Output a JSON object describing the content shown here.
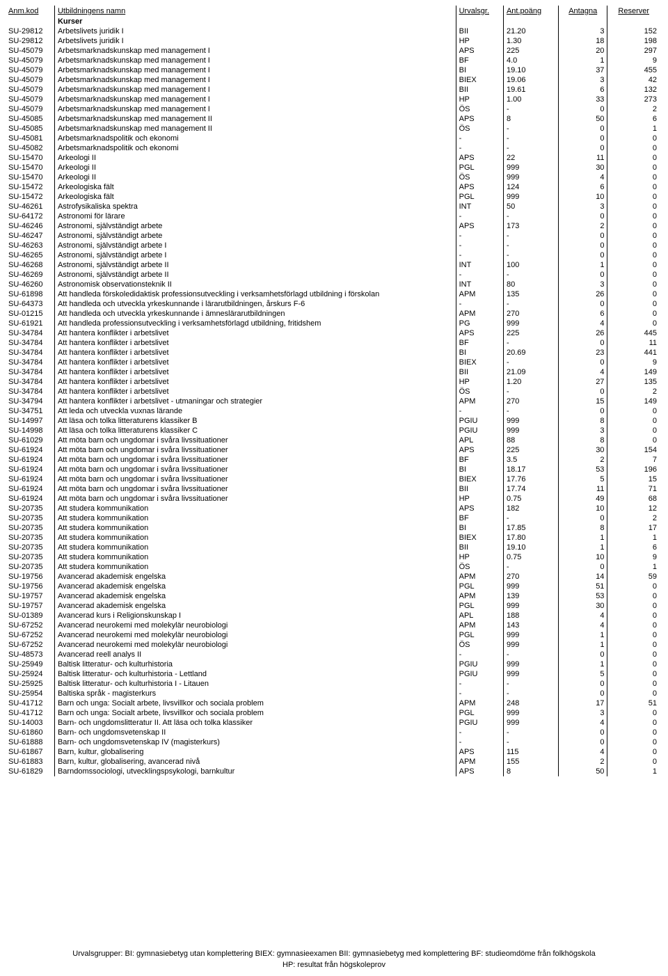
{
  "headers": {
    "code": "Anm.kod",
    "name": "Utbildningens namn",
    "urv": "Urvalsgr.",
    "poang": "Ant.poäng",
    "ant": "Antagna",
    "res": "Reserver"
  },
  "section_label": "Kurser",
  "footer_line1": "Urvalsgrupper:  BI: gymnasiebetyg utan komplettering  BIEX: gymnasieexamen  BII: gymnasiebetyg med komplettering  BF: studieomdöme från folkhögskola",
  "footer_line2": "HP: resultat från högskoleprov",
  "rows": [
    [
      "SU-29812",
      "Arbetslivets juridik I",
      "BII",
      "21.20",
      "3",
      "152"
    ],
    [
      "SU-29812",
      "Arbetslivets juridik I",
      "HP",
      "1.30",
      "18",
      "198"
    ],
    [
      "SU-45079",
      "Arbetsmarknadskunskap med management I",
      "APS",
      "225",
      "20",
      "297"
    ],
    [
      "SU-45079",
      "Arbetsmarknadskunskap med management I",
      "BF",
      "4.0",
      "1",
      "9"
    ],
    [
      "SU-45079",
      "Arbetsmarknadskunskap med management I",
      "BI",
      "19.10",
      "37",
      "455"
    ],
    [
      "SU-45079",
      "Arbetsmarknadskunskap med management I",
      "BIEX",
      "19.06",
      "3",
      "42"
    ],
    [
      "SU-45079",
      "Arbetsmarknadskunskap med management I",
      "BII",
      "19.61",
      "6",
      "132"
    ],
    [
      "SU-45079",
      "Arbetsmarknadskunskap med management I",
      "HP",
      "1.00",
      "33",
      "273"
    ],
    [
      "SU-45079",
      "Arbetsmarknadskunskap med management I",
      "ÖS",
      "-",
      "0",
      "2"
    ],
    [
      "SU-45085",
      "Arbetsmarknadskunskap med management II",
      "APS",
      "8",
      "50",
      "6"
    ],
    [
      "SU-45085",
      "Arbetsmarknadskunskap med management II",
      "ÖS",
      "-",
      "0",
      "1"
    ],
    [
      "SU-45081",
      "Arbetsmarknadspolitik och ekonomi",
      "-",
      "-",
      "0",
      "0"
    ],
    [
      "SU-45082",
      "Arbetsmarknadspolitik och ekonomi",
      "-",
      "-",
      "0",
      "0"
    ],
    [
      "SU-15470",
      "Arkeologi II",
      "APS",
      "22",
      "11",
      "0"
    ],
    [
      "SU-15470",
      "Arkeologi II",
      "PGL",
      "999",
      "30",
      "0"
    ],
    [
      "SU-15470",
      "Arkeologi II",
      "ÖS",
      "999",
      "4",
      "0"
    ],
    [
      "SU-15472",
      "Arkeologiska fält",
      "APS",
      "124",
      "6",
      "0"
    ],
    [
      "SU-15472",
      "Arkeologiska fält",
      "PGL",
      "999",
      "10",
      "0"
    ],
    [
      "SU-46261",
      "Astrofysikaliska spektra",
      "INT",
      "50",
      "3",
      "0"
    ],
    [
      "SU-64172",
      "Astronomi för lärare",
      "-",
      "-",
      "0",
      "0"
    ],
    [
      "SU-46246",
      "Astronomi, självständigt arbete",
      "APS",
      "173",
      "2",
      "0"
    ],
    [
      "SU-46247",
      "Astronomi, självständigt arbete",
      "-",
      "-",
      "0",
      "0"
    ],
    [
      "SU-46263",
      "Astronomi, självständigt arbete I",
      "-",
      "-",
      "0",
      "0"
    ],
    [
      "SU-46265",
      "Astronomi, självständigt arbete I",
      "-",
      "-",
      "0",
      "0"
    ],
    [
      "SU-46268",
      "Astronomi, självständigt arbete II",
      "INT",
      "100",
      "1",
      "0"
    ],
    [
      "SU-46269",
      "Astronomi, självständigt arbete II",
      "-",
      "-",
      "0",
      "0"
    ],
    [
      "SU-46260",
      "Astronomisk observationsteknik II",
      "INT",
      "80",
      "3",
      "0"
    ],
    [
      "SU-61898",
      "Att handleda förskoledidaktisk professionsutveckling i verksamhetsförlagd utbildning i förskolan",
      "APM",
      "135",
      "26",
      "0"
    ],
    [
      "SU-64373",
      "Att handleda och utveckla yrkeskunnande i lärarutbildningen, årskurs F-6",
      "-",
      "-",
      "0",
      "0"
    ],
    [
      "SU-01215",
      "Att handleda och utveckla yrkeskunnande i ämneslärarutbildningen",
      "APM",
      "270",
      "6",
      "0"
    ],
    [
      "SU-61921",
      "Att handleda professionsutveckling i verksamhetsförlagd utbildning, fritidshem",
      "PG",
      "999",
      "4",
      "0"
    ],
    [
      "SU-34784",
      "Att hantera konflikter i arbetslivet",
      "APS",
      "225",
      "26",
      "445"
    ],
    [
      "SU-34784",
      "Att hantera konflikter i arbetslivet",
      "BF",
      "-",
      "0",
      "11"
    ],
    [
      "SU-34784",
      "Att hantera konflikter i arbetslivet",
      "BI",
      "20.69",
      "23",
      "441"
    ],
    [
      "SU-34784",
      "Att hantera konflikter i arbetslivet",
      "BIEX",
      "-",
      "0",
      "9"
    ],
    [
      "SU-34784",
      "Att hantera konflikter i arbetslivet",
      "BII",
      "21.09",
      "4",
      "149"
    ],
    [
      "SU-34784",
      "Att hantera konflikter i arbetslivet",
      "HP",
      "1.20",
      "27",
      "135"
    ],
    [
      "SU-34784",
      "Att hantera konflikter i arbetslivet",
      "ÖS",
      "-",
      "0",
      "2"
    ],
    [
      "SU-34794",
      "Att hantera konflikter i arbetslivet  - utmaningar och strategier",
      "APM",
      "270",
      "15",
      "149"
    ],
    [
      "SU-34751",
      "Att leda och utveckla vuxnas lärande",
      "-",
      "-",
      "0",
      "0"
    ],
    [
      "SU-14997",
      "Att läsa och tolka litteraturens klassiker B",
      "PGIU",
      "999",
      "8",
      "0"
    ],
    [
      "SU-14998",
      "Att läsa och tolka litteraturens klassiker C",
      "PGIU",
      "999",
      "3",
      "0"
    ],
    [
      "SU-61029",
      "Att möta barn och ungdomar i svåra livssituationer",
      "APL",
      "88",
      "8",
      "0"
    ],
    [
      "SU-61924",
      "Att möta barn och ungdomar i svåra livssituationer",
      "APS",
      "225",
      "30",
      "154"
    ],
    [
      "SU-61924",
      "Att möta barn och ungdomar i svåra livssituationer",
      "BF",
      "3.5",
      "2",
      "7"
    ],
    [
      "SU-61924",
      "Att möta barn och ungdomar i svåra livssituationer",
      "BI",
      "18.17",
      "53",
      "196"
    ],
    [
      "SU-61924",
      "Att möta barn och ungdomar i svåra livssituationer",
      "BIEX",
      "17.76",
      "5",
      "15"
    ],
    [
      "SU-61924",
      "Att möta barn och ungdomar i svåra livssituationer",
      "BII",
      "17.74",
      "11",
      "71"
    ],
    [
      "SU-61924",
      "Att möta barn och ungdomar i svåra livssituationer",
      "HP",
      "0.75",
      "49",
      "68"
    ],
    [
      "SU-20735",
      "Att studera kommunikation",
      "APS",
      "182",
      "10",
      "12"
    ],
    [
      "SU-20735",
      "Att studera kommunikation",
      "BF",
      "-",
      "0",
      "2"
    ],
    [
      "SU-20735",
      "Att studera kommunikation",
      "BI",
      "17.85",
      "8",
      "17"
    ],
    [
      "SU-20735",
      "Att studera kommunikation",
      "BIEX",
      "17.80",
      "1",
      "1"
    ],
    [
      "SU-20735",
      "Att studera kommunikation",
      "BII",
      "19.10",
      "1",
      "6"
    ],
    [
      "SU-20735",
      "Att studera kommunikation",
      "HP",
      "0.75",
      "10",
      "9"
    ],
    [
      "SU-20735",
      "Att studera kommunikation",
      "ÖS",
      "-",
      "0",
      "1"
    ],
    [
      "SU-19756",
      "Avancerad akademisk engelska",
      "APM",
      "270",
      "14",
      "59"
    ],
    [
      "SU-19756",
      "Avancerad akademisk engelska",
      "PGL",
      "999",
      "51",
      "0"
    ],
    [
      "SU-19757",
      "Avancerad akademisk engelska",
      "APM",
      "139",
      "53",
      "0"
    ],
    [
      "SU-19757",
      "Avancerad akademisk engelska",
      "PGL",
      "999",
      "30",
      "0"
    ],
    [
      "SU-01389",
      "Avancerad kurs i Religionskunskap I",
      "APL",
      "188",
      "4",
      "0"
    ],
    [
      "SU-67252",
      "Avancerad neurokemi med molekylär neurobiologi",
      "APM",
      "143",
      "4",
      "0"
    ],
    [
      "SU-67252",
      "Avancerad neurokemi med molekylär neurobiologi",
      "PGL",
      "999",
      "1",
      "0"
    ],
    [
      "SU-67252",
      "Avancerad neurokemi med molekylär neurobiologi",
      "ÖS",
      "999",
      "1",
      "0"
    ],
    [
      "SU-48573",
      "Avancerad reell analys II",
      "-",
      "-",
      "0",
      "0"
    ],
    [
      "SU-25949",
      "Baltisk litteratur- och kulturhistoria",
      "PGIU",
      "999",
      "1",
      "0"
    ],
    [
      "SU-25924",
      "Baltisk litteratur- och kulturhistoria - Lettland",
      "PGIU",
      "999",
      "5",
      "0"
    ],
    [
      "SU-25925",
      "Baltisk litteratur- och kulturhistoria I - Litauen",
      "-",
      "-",
      "0",
      "0"
    ],
    [
      "SU-25954",
      "Baltiska språk - magisterkurs",
      "-",
      "-",
      "0",
      "0"
    ],
    [
      "SU-41712",
      "Barn och unga: Socialt arbete, livsvillkor och sociala problem",
      "APM",
      "248",
      "17",
      "51"
    ],
    [
      "SU-41712",
      "Barn och unga: Socialt arbete, livsvillkor och sociala problem",
      "PGL",
      "999",
      "3",
      "0"
    ],
    [
      "SU-14003",
      "Barn- och ungdomslitteratur II. Att läsa och tolka klassiker",
      "PGIU",
      "999",
      "4",
      "0"
    ],
    [
      "SU-61860",
      "Barn- och ungdomsvetenskap II",
      "-",
      "-",
      "0",
      "0"
    ],
    [
      "SU-61888",
      "Barn- och ungdomsvetenskap IV (magisterkurs)",
      "-",
      "-",
      "0",
      "0"
    ],
    [
      "SU-61867",
      "Barn, kultur, globalisering",
      "APS",
      "115",
      "4",
      "0"
    ],
    [
      "SU-61883",
      "Barn, kultur, globalisering, avancerad nivå",
      "APM",
      "155",
      "2",
      "0"
    ],
    [
      "SU-61829",
      "Barndomssociologi, utvecklingspsykologi, barnkultur",
      "APS",
      "8",
      "50",
      "1"
    ]
  ]
}
